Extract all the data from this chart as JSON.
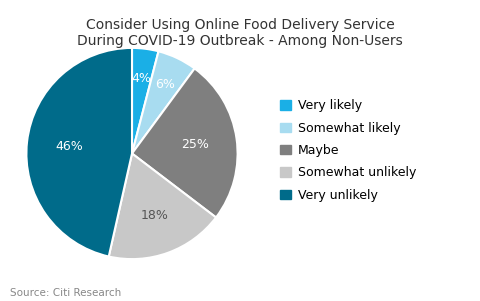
{
  "title": "Consider Using Online Food Delivery Service\nDuring COVID-19 Outbreak - Among Non-Users",
  "labels": [
    "Very likely",
    "Somewhat likely",
    "Maybe",
    "Somewhat unlikely",
    "Very unlikely"
  ],
  "values": [
    4,
    6,
    25,
    18,
    46
  ],
  "colors": [
    "#1AAFE6",
    "#A8DCF0",
    "#7F7F7F",
    "#C8C8C8",
    "#006B8A"
  ],
  "pct_labels": [
    "4%",
    "6%",
    "25%",
    "18%",
    "46%"
  ],
  "pct_colors": [
    "white",
    "white",
    "white",
    "#555555",
    "white"
  ],
  "source_text": "Source: Citi Research",
  "background_color": "#ffffff",
  "title_fontsize": 10,
  "legend_fontsize": 9,
  "pct_fontsize": 9
}
